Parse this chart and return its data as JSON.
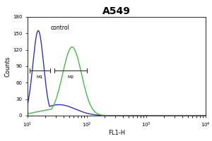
{
  "title": "A549",
  "xlabel": "FL1-H",
  "ylabel": "Counts",
  "xlim": [
    10,
    10000
  ],
  "ylim": [
    0,
    180
  ],
  "yticks": [
    0,
    30,
    60,
    90,
    120,
    150,
    180
  ],
  "control_color": "#3333bb",
  "sample_color": "#44bb44",
  "control_peak_log": 1.18,
  "control_peak_y": 155,
  "control_sigma": 0.09,
  "sample_peak_log": 1.75,
  "sample_peak_y": 125,
  "sample_sigma": 0.16,
  "annotation_text": "control",
  "m1_label": "M1",
  "m2_label": "M2",
  "m1_x_start_log": 1.03,
  "m1_x_end_log": 1.38,
  "m1_y": 82,
  "m2_x_start_log": 1.45,
  "m2_x_end_log": 2.0,
  "m2_y": 82,
  "background_color": "#ffffff",
  "plot_bg_color": "#ffffff",
  "title_fontsize": 10,
  "label_fontsize": 6,
  "tick_fontsize": 5,
  "linewidth_ctrl": 1.0,
  "linewidth_samp": 1.0
}
